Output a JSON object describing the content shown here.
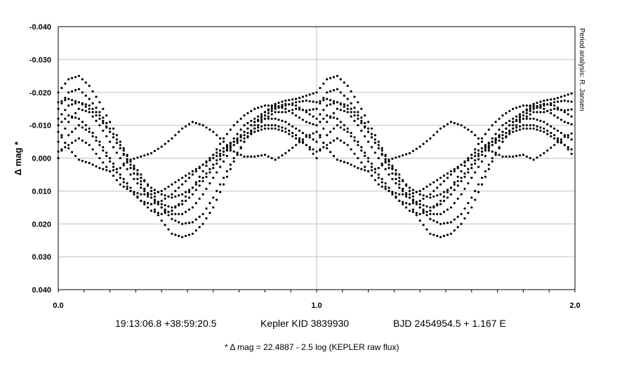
{
  "chart_data": {
    "type": "scatter",
    "title": "",
    "xlabel": "",
    "ylabel": "Δ mag *",
    "xlim": [
      0.0,
      2.0
    ],
    "ylim": [
      -0.04,
      0.04
    ],
    "y_inverted": true,
    "grid": true,
    "x_ticks": [
      0.0,
      1.0,
      2.0
    ],
    "x_tick_labels": [
      "0.0",
      "1.0",
      "2.0"
    ],
    "x_minor_step": 0.1,
    "y_ticks": [
      -0.04,
      -0.03,
      -0.02,
      -0.01,
      0.0,
      0.01,
      0.02,
      0.03,
      0.04
    ],
    "y_tick_labels": [
      "-0.040",
      "-0.030",
      "-0.020",
      "-0.010",
      "0.000",
      "0.010",
      "0.020",
      "0.030",
      "0.040"
    ],
    "marker_color": "#000000",
    "x_repeat_offset": 1.0,
    "series": [
      {
        "points": [
          [
            0.0,
            -0.008
          ],
          [
            0.04,
            -0.003
          ],
          [
            0.08,
            0.0005
          ],
          [
            0.12,
            0.0015
          ],
          [
            0.16,
            0.003
          ],
          [
            0.2,
            0.004
          ],
          [
            0.24,
            0.003
          ],
          [
            0.28,
            0.0005
          ],
          [
            0.32,
            -0.0005
          ],
          [
            0.36,
            -0.0015
          ],
          [
            0.4,
            -0.0035
          ],
          [
            0.44,
            -0.006
          ],
          [
            0.48,
            -0.009
          ],
          [
            0.52,
            -0.011
          ],
          [
            0.56,
            -0.01
          ],
          [
            0.6,
            -0.008
          ],
          [
            0.64,
            -0.005
          ],
          [
            0.68,
            -0.002
          ],
          [
            0.72,
            -0.0005
          ],
          [
            0.76,
            -0.0005
          ],
          [
            0.8,
            -0.001
          ],
          [
            0.84,
            0.0005
          ],
          [
            0.88,
            -0.0015
          ],
          [
            0.92,
            -0.004
          ],
          [
            0.96,
            -0.0065
          ]
        ]
      },
      {
        "points": [
          [
            0.0,
            -0.015
          ],
          [
            0.04,
            -0.02
          ],
          [
            0.08,
            -0.021
          ],
          [
            0.12,
            -0.018
          ],
          [
            0.16,
            -0.014
          ],
          [
            0.2,
            -0.009
          ],
          [
            0.24,
            -0.004
          ],
          [
            0.28,
            0.001
          ],
          [
            0.32,
            0.005
          ],
          [
            0.36,
            0.01
          ],
          [
            0.4,
            0.015
          ],
          [
            0.44,
            0.0185
          ],
          [
            0.48,
            0.02
          ],
          [
            0.52,
            0.0195
          ],
          [
            0.56,
            0.017
          ],
          [
            0.6,
            0.012
          ],
          [
            0.64,
            0.006
          ],
          [
            0.68,
            0.0
          ],
          [
            0.72,
            -0.005
          ],
          [
            0.76,
            -0.009
          ],
          [
            0.8,
            -0.012
          ],
          [
            0.84,
            -0.014
          ],
          [
            0.88,
            -0.014
          ],
          [
            0.92,
            -0.015
          ],
          [
            0.96,
            -0.0145
          ]
        ]
      },
      {
        "points": [
          [
            0.0,
            -0.005
          ],
          [
            0.04,
            -0.011
          ],
          [
            0.08,
            -0.015
          ],
          [
            0.12,
            -0.014
          ],
          [
            0.16,
            -0.01
          ],
          [
            0.2,
            -0.005
          ],
          [
            0.24,
            0.0
          ],
          [
            0.28,
            0.005
          ],
          [
            0.32,
            0.009
          ],
          [
            0.36,
            0.012
          ],
          [
            0.4,
            0.014
          ],
          [
            0.44,
            0.015
          ],
          [
            0.48,
            0.014
          ],
          [
            0.52,
            0.011
          ],
          [
            0.56,
            0.007
          ],
          [
            0.6,
            0.003
          ],
          [
            0.64,
            -0.001
          ],
          [
            0.68,
            -0.005
          ],
          [
            0.72,
            -0.008
          ],
          [
            0.76,
            -0.011
          ],
          [
            0.8,
            -0.012
          ],
          [
            0.84,
            -0.012
          ],
          [
            0.88,
            -0.011
          ],
          [
            0.92,
            -0.009
          ],
          [
            0.96,
            -0.007
          ]
        ]
      },
      {
        "points": [
          [
            0.0,
            -0.02
          ],
          [
            0.04,
            -0.024
          ],
          [
            0.08,
            -0.025
          ],
          [
            0.12,
            -0.022
          ],
          [
            0.16,
            -0.017
          ],
          [
            0.2,
            -0.011
          ],
          [
            0.24,
            -0.005
          ],
          [
            0.28,
            0.001
          ],
          [
            0.32,
            0.007
          ],
          [
            0.36,
            0.014
          ],
          [
            0.4,
            0.019
          ],
          [
            0.44,
            0.023
          ],
          [
            0.48,
            0.024
          ],
          [
            0.52,
            0.023
          ],
          [
            0.56,
            0.02
          ],
          [
            0.6,
            0.015
          ],
          [
            0.64,
            0.008
          ],
          [
            0.68,
            0.001
          ],
          [
            0.72,
            -0.005
          ],
          [
            0.76,
            -0.01
          ],
          [
            0.8,
            -0.014
          ],
          [
            0.84,
            -0.0165
          ],
          [
            0.88,
            -0.0175
          ],
          [
            0.92,
            -0.018
          ],
          [
            0.96,
            -0.019
          ]
        ]
      },
      {
        "points": [
          [
            0.0,
            -0.012
          ],
          [
            0.04,
            -0.016
          ],
          [
            0.08,
            -0.017
          ],
          [
            0.12,
            -0.016
          ],
          [
            0.16,
            -0.013
          ],
          [
            0.2,
            -0.008
          ],
          [
            0.24,
            -0.003
          ],
          [
            0.28,
            0.002
          ],
          [
            0.32,
            0.006
          ],
          [
            0.36,
            0.009
          ],
          [
            0.4,
            0.011
          ],
          [
            0.44,
            0.012
          ],
          [
            0.48,
            0.011
          ],
          [
            0.52,
            0.009
          ],
          [
            0.56,
            0.006
          ],
          [
            0.6,
            0.002
          ],
          [
            0.64,
            -0.002
          ],
          [
            0.68,
            -0.006
          ],
          [
            0.72,
            -0.01
          ],
          [
            0.76,
            -0.012
          ],
          [
            0.8,
            -0.014
          ],
          [
            0.84,
            -0.0155
          ],
          [
            0.88,
            -0.0165
          ],
          [
            0.92,
            -0.016
          ],
          [
            0.96,
            -0.014
          ]
        ]
      },
      {
        "points": [
          [
            0.0,
            -0.002
          ],
          [
            0.04,
            -0.004
          ],
          [
            0.08,
            -0.006
          ],
          [
            0.12,
            -0.004
          ],
          [
            0.16,
            0.0
          ],
          [
            0.2,
            0.004
          ],
          [
            0.24,
            0.008
          ],
          [
            0.28,
            0.01
          ],
          [
            0.32,
            0.011
          ],
          [
            0.36,
            0.011
          ],
          [
            0.4,
            0.01
          ],
          [
            0.44,
            0.008
          ],
          [
            0.48,
            0.006
          ],
          [
            0.52,
            0.004
          ],
          [
            0.56,
            0.002
          ],
          [
            0.6,
            0.0
          ],
          [
            0.64,
            -0.002
          ],
          [
            0.68,
            -0.004
          ],
          [
            0.72,
            -0.006
          ],
          [
            0.76,
            -0.008
          ],
          [
            0.8,
            -0.009
          ],
          [
            0.84,
            -0.009
          ],
          [
            0.88,
            -0.008
          ],
          [
            0.92,
            -0.006
          ],
          [
            0.96,
            -0.004
          ]
        ]
      },
      {
        "points": [
          [
            0.0,
            -0.01
          ],
          [
            0.04,
            -0.013
          ],
          [
            0.08,
            -0.012
          ],
          [
            0.12,
            -0.009
          ],
          [
            0.16,
            -0.005
          ],
          [
            0.2,
            0.0
          ],
          [
            0.24,
            0.005
          ],
          [
            0.28,
            0.009
          ],
          [
            0.32,
            0.013
          ],
          [
            0.36,
            0.016
          ],
          [
            0.4,
            0.017
          ],
          [
            0.44,
            0.016
          ],
          [
            0.48,
            0.013
          ],
          [
            0.52,
            0.009
          ],
          [
            0.56,
            0.004
          ],
          [
            0.6,
            -0.001
          ],
          [
            0.64,
            -0.006
          ],
          [
            0.68,
            -0.01
          ],
          [
            0.72,
            -0.013
          ],
          [
            0.76,
            -0.015
          ],
          [
            0.8,
            -0.016
          ],
          [
            0.84,
            -0.016
          ],
          [
            0.88,
            -0.015
          ],
          [
            0.92,
            -0.013
          ],
          [
            0.96,
            -0.011
          ]
        ]
      },
      {
        "points": [
          [
            0.0,
            -0.017
          ],
          [
            0.04,
            -0.018
          ],
          [
            0.08,
            -0.017
          ],
          [
            0.12,
            -0.015
          ],
          [
            0.16,
            -0.012
          ],
          [
            0.2,
            -0.008
          ],
          [
            0.24,
            -0.003
          ],
          [
            0.28,
            0.003
          ],
          [
            0.32,
            0.008
          ],
          [
            0.36,
            0.012
          ],
          [
            0.4,
            0.015
          ],
          [
            0.44,
            0.017
          ],
          [
            0.48,
            0.017
          ],
          [
            0.52,
            0.015
          ],
          [
            0.56,
            0.011
          ],
          [
            0.6,
            0.006
          ],
          [
            0.64,
            0.001
          ],
          [
            0.68,
            -0.004
          ],
          [
            0.72,
            -0.008
          ],
          [
            0.76,
            -0.011
          ],
          [
            0.8,
            -0.013
          ],
          [
            0.84,
            -0.015
          ],
          [
            0.88,
            -0.016
          ],
          [
            0.92,
            -0.017
          ],
          [
            0.96,
            -0.0175
          ]
        ]
      },
      {
        "points": [
          [
            0.0,
            0.0
          ],
          [
            0.04,
            -0.007
          ],
          [
            0.08,
            -0.01
          ],
          [
            0.12,
            -0.008
          ],
          [
            0.16,
            -0.004
          ],
          [
            0.2,
            0.001
          ],
          [
            0.24,
            0.006
          ],
          [
            0.28,
            0.01
          ],
          [
            0.32,
            0.013
          ],
          [
            0.36,
            0.014
          ],
          [
            0.4,
            0.013
          ],
          [
            0.44,
            0.011
          ],
          [
            0.48,
            0.008
          ],
          [
            0.52,
            0.005
          ],
          [
            0.56,
            0.002
          ],
          [
            0.6,
            -0.001
          ],
          [
            0.64,
            -0.003
          ],
          [
            0.68,
            -0.005
          ],
          [
            0.72,
            -0.007
          ],
          [
            0.76,
            -0.009
          ],
          [
            0.8,
            -0.01
          ],
          [
            0.84,
            -0.01
          ],
          [
            0.88,
            -0.009
          ],
          [
            0.92,
            -0.007
          ],
          [
            0.96,
            -0.004
          ]
        ]
      }
    ]
  },
  "captions": {
    "coords": "19:13:06.8 +38:59:20.5",
    "kepler": "Kepler KID 3839930",
    "ephemeris": "BJD 2454954.5 + 1.167 E",
    "footnote": "* Δ mag = 22.4887 - 2.5 log (KEPLER raw flux)",
    "credit": "Period analysis: R. Jansen"
  }
}
